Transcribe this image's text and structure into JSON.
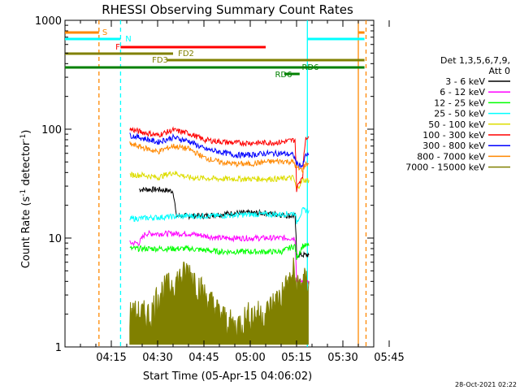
{
  "chart_data": {
    "type": "line",
    "title": "RHESSI Observing Summary Count Rates",
    "xlabel": "Start Time (05-Apr-15 04:06:02)",
    "ylabel": "Count Rate (s⁻¹ detector⁻¹)",
    "ylabel_parts": {
      "main": "Count Rate (s",
      "sup1": "-1",
      "mid": " detector",
      "sup2": "-1",
      "end": ")"
    },
    "yscale": "log",
    "ylim": [
      1,
      1000
    ],
    "xlim_minutes": [
      0,
      100
    ],
    "x_ticks": [
      {
        "label": "04:15",
        "minutes": 15
      },
      {
        "label": "04:30",
        "minutes": 30
      },
      {
        "label": "04:45",
        "minutes": 45
      },
      {
        "label": "05:00",
        "minutes": 60
      },
      {
        "label": "05:15",
        "minutes": 75
      },
      {
        "label": "05:30",
        "minutes": 90
      },
      {
        "label": "05:45",
        "minutes": 105
      }
    ],
    "y_ticks": [
      {
        "label": "1",
        "value": 1
      },
      {
        "label": "10",
        "value": 10
      },
      {
        "label": "100",
        "value": 100
      },
      {
        "label": "1000",
        "value": 1000
      }
    ],
    "legend": {
      "position": "right",
      "header_line1": "Det 1,3,5,6,7,9,",
      "header_line2": "Att 0",
      "entries": [
        {
          "label": "3 - 6 keV",
          "color": "#000000"
        },
        {
          "label": "6 - 12 keV",
          "color": "#ff00ff"
        },
        {
          "label": "12 - 25 keV",
          "color": "#00ff00"
        },
        {
          "label": "25 - 50 keV",
          "color": "#00ffff"
        },
        {
          "label": "50 - 100 keV",
          "color": "#dddd00"
        },
        {
          "label": "100 - 300 keV",
          "color": "#ff0000"
        },
        {
          "label": "300 - 800 keV",
          "color": "#0000ff"
        },
        {
          "label": "800 - 7000 keV",
          "color": "#ff8800"
        },
        {
          "label": "7000 - 15000 keV",
          "color": "#808000"
        }
      ]
    },
    "series": [
      {
        "name": "3 - 6 keV",
        "color": "#000000",
        "points": [
          [
            24,
            28
          ],
          [
            30,
            28
          ],
          [
            35,
            27
          ],
          [
            36,
            16
          ],
          [
            45,
            16
          ],
          [
            55,
            17
          ],
          [
            65,
            17
          ],
          [
            73,
            16
          ],
          [
            74.5,
            16
          ],
          [
            75,
            7
          ],
          [
            79,
            7
          ]
        ]
      },
      {
        "name": "6 - 12 keV",
        "color": "#ff00ff",
        "points": [
          [
            21,
            9
          ],
          [
            24,
            9
          ],
          [
            26,
            11
          ],
          [
            35,
            11
          ],
          [
            40,
            11
          ],
          [
            50,
            10
          ],
          [
            60,
            10
          ],
          [
            70,
            10
          ],
          [
            73,
            10
          ],
          [
            74.5,
            10
          ],
          [
            75,
            4
          ],
          [
            79,
            4
          ]
        ]
      },
      {
        "name": "12 - 25 keV",
        "color": "#00ff00",
        "points": [
          [
            21,
            8
          ],
          [
            24,
            8
          ],
          [
            30,
            8
          ],
          [
            40,
            8
          ],
          [
            50,
            7.5
          ],
          [
            60,
            7.5
          ],
          [
            70,
            7.5
          ],
          [
            74.5,
            8.5
          ],
          [
            75,
            6.5
          ],
          [
            77,
            8.5
          ],
          [
            79,
            8.5
          ]
        ]
      },
      {
        "name": "25 - 50 keV",
        "color": "#00ffff",
        "points": [
          [
            21,
            15
          ],
          [
            30,
            15.5
          ],
          [
            40,
            16
          ],
          [
            50,
            16
          ],
          [
            60,
            16.5
          ],
          [
            70,
            16.5
          ],
          [
            74.5,
            17
          ],
          [
            75,
            14
          ],
          [
            77,
            18
          ],
          [
            79,
            18
          ]
        ]
      },
      {
        "name": "50 - 100 keV",
        "color": "#dddd00",
        "points": [
          [
            21,
            38
          ],
          [
            25,
            38
          ],
          [
            30,
            36
          ],
          [
            35,
            40
          ],
          [
            40,
            36
          ],
          [
            50,
            35
          ],
          [
            60,
            35
          ],
          [
            70,
            35
          ],
          [
            74,
            36
          ],
          [
            75,
            28
          ],
          [
            77,
            34
          ],
          [
            79,
            34
          ]
        ]
      },
      {
        "name": "100 - 300 keV",
        "color": "#ff0000",
        "points": [
          [
            21,
            100
          ],
          [
            25,
            94
          ],
          [
            30,
            88
          ],
          [
            35,
            98
          ],
          [
            40,
            92
          ],
          [
            45,
            80
          ],
          [
            50,
            77
          ],
          [
            55,
            75
          ],
          [
            60,
            75
          ],
          [
            65,
            75
          ],
          [
            70,
            76
          ],
          [
            74.5,
            80
          ],
          [
            75,
            28
          ],
          [
            77,
            38
          ],
          [
            78,
            85
          ],
          [
            79,
            85
          ]
        ]
      },
      {
        "name": "300 - 800 keV",
        "color": "#0000ff",
        "points": [
          [
            21,
            88
          ],
          [
            25,
            83
          ],
          [
            30,
            76
          ],
          [
            35,
            84
          ],
          [
            40,
            78
          ],
          [
            45,
            66
          ],
          [
            50,
            62
          ],
          [
            55,
            58
          ],
          [
            60,
            58
          ],
          [
            65,
            60
          ],
          [
            70,
            60
          ],
          [
            74,
            58
          ],
          [
            75,
            48
          ],
          [
            77,
            46
          ],
          [
            78,
            58
          ],
          [
            79,
            58
          ]
        ]
      },
      {
        "name": "800 - 7000 keV",
        "color": "#ff8800",
        "points": [
          [
            21,
            73
          ],
          [
            25,
            68
          ],
          [
            30,
            62
          ],
          [
            35,
            70
          ],
          [
            40,
            66
          ],
          [
            45,
            55
          ],
          [
            50,
            50
          ],
          [
            55,
            48
          ],
          [
            60,
            48
          ],
          [
            65,
            50
          ],
          [
            70,
            51
          ],
          [
            74,
            50
          ],
          [
            75,
            44
          ],
          [
            77,
            42
          ],
          [
            78,
            48
          ],
          [
            79,
            48
          ]
        ]
      },
      {
        "name": "7000 - 15000 keV",
        "color": "#808000",
        "points": [
          [
            21,
            2
          ],
          [
            28,
            2
          ],
          [
            30,
            3
          ],
          [
            36,
            4
          ],
          [
            40,
            5
          ],
          [
            45,
            3
          ],
          [
            50,
            2
          ],
          [
            55,
            1.5
          ],
          [
            60,
            2
          ],
          [
            65,
            2
          ],
          [
            70,
            3
          ],
          [
            73,
            4
          ],
          [
            74,
            5
          ],
          [
            75,
            3.5
          ],
          [
            77,
            4
          ],
          [
            79,
            4
          ]
        ]
      }
    ],
    "flag_bars": [
      {
        "label": "S",
        "color": "#ff8800",
        "start": 0,
        "end": 11,
        "level": 0
      },
      {
        "label": "N",
        "color": "#00ffff",
        "start": 0,
        "end": 18,
        "level": 1
      },
      {
        "label": "F",
        "color": "#ff0000",
        "start": 18,
        "end": 65,
        "level": 2
      },
      {
        "label": "FD2",
        "color": "#808000",
        "start": 0,
        "end": 35,
        "level": 3
      },
      {
        "label": "FD3",
        "color": "#808000",
        "start": 33,
        "end": 97,
        "level": 4
      },
      {
        "label": "RD6",
        "color": "#008000",
        "start": 71,
        "end": 76,
        "level": 5
      },
      {
        "label": "RD6",
        "color": "#008000",
        "start": 0,
        "end": 97,
        "level": 6
      },
      {
        "label": "N",
        "color": "#00ffff",
        "start": 78.5,
        "end": 97,
        "level": 1
      },
      {
        "label": "S",
        "color": "#ff8800",
        "start": 95,
        "end": 97,
        "level": 0
      }
    ],
    "vertical_lines": [
      {
        "minutes": 11,
        "color": "#ff8800",
        "dashed": true
      },
      {
        "minutes": 18,
        "color": "#00ffff",
        "dashed": true
      },
      {
        "minutes": 78.5,
        "color": "#00ffff",
        "dashed": false
      },
      {
        "minutes": 95,
        "color": "#ff8800",
        "dashed": false
      },
      {
        "minutes": 97.5,
        "color": "#ff8800",
        "dashed": true
      }
    ],
    "timestamp": "28-Oct-2021 02:22"
  }
}
